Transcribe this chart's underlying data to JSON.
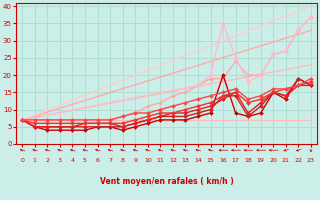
{
  "xlabel": "Vent moyen/en rafales ( km/h )",
  "xlim": [
    -0.5,
    23.5
  ],
  "ylim": [
    0,
    41
  ],
  "yticks": [
    0,
    5,
    10,
    15,
    20,
    25,
    30,
    35,
    40
  ],
  "xticks": [
    0,
    1,
    2,
    3,
    4,
    5,
    6,
    7,
    8,
    9,
    10,
    11,
    12,
    13,
    14,
    15,
    16,
    17,
    18,
    19,
    20,
    21,
    22,
    23
  ],
  "background_color": "#cceee8",
  "grid_color": "#aaddcc",
  "series": [
    {
      "x": [
        0,
        23
      ],
      "y": [
        7,
        7
      ],
      "color": "#ffbbbb",
      "linewidth": 1.0,
      "marker": null,
      "zorder": 1
    },
    {
      "x": [
        0,
        23
      ],
      "y": [
        7,
        23
      ],
      "color": "#ffbbbb",
      "linewidth": 1.0,
      "marker": null,
      "zorder": 1
    },
    {
      "x": [
        0,
        23
      ],
      "y": [
        7,
        33
      ],
      "color": "#ffaaaa",
      "linewidth": 1.0,
      "marker": null,
      "zorder": 1
    },
    {
      "x": [
        0,
        23
      ],
      "y": [
        7,
        40
      ],
      "color": "#ffcccc",
      "linewidth": 1.0,
      "marker": null,
      "zorder": 1
    },
    {
      "x": [
        0,
        1,
        2,
        3,
        4,
        5,
        6,
        7,
        8,
        9,
        10,
        11,
        12,
        13,
        14,
        15,
        16,
        17,
        18,
        19,
        20,
        21,
        22,
        23
      ],
      "y": [
        7,
        7,
        7,
        7,
        7,
        7,
        7,
        7,
        8,
        9,
        11,
        12,
        14,
        15,
        17,
        19,
        19,
        24,
        20,
        20,
        26,
        27,
        33,
        37
      ],
      "color": "#ffaaaa",
      "linewidth": 1.0,
      "marker": "D",
      "markersize": 2.0,
      "zorder": 2
    },
    {
      "x": [
        0,
        1,
        2,
        3,
        4,
        5,
        6,
        7,
        8,
        9,
        10,
        11,
        12,
        13,
        14,
        15,
        16,
        17,
        18,
        19,
        20,
        21,
        22,
        23
      ],
      "y": [
        7,
        5,
        4,
        4,
        4,
        4,
        5,
        5,
        4,
        5,
        6,
        7,
        7,
        7,
        8,
        9,
        20,
        9,
        8,
        9,
        15,
        13,
        19,
        17
      ],
      "color": "#cc0000",
      "linewidth": 1.0,
      "marker": "D",
      "markersize": 2.0,
      "zorder": 4
    },
    {
      "x": [
        0,
        1,
        2,
        3,
        4,
        5,
        6,
        7,
        8,
        9,
        10,
        11,
        12,
        13,
        14,
        15,
        16,
        17,
        18,
        19,
        20,
        21,
        22,
        23
      ],
      "y": [
        7,
        5,
        5,
        5,
        5,
        5,
        5,
        5,
        5,
        6,
        7,
        8,
        8,
        8,
        9,
        10,
        14,
        14,
        8,
        11,
        15,
        14,
        19,
        17
      ],
      "color": "#cc2222",
      "linewidth": 1.0,
      "marker": "D",
      "markersize": 2.0,
      "zorder": 4
    },
    {
      "x": [
        0,
        1,
        2,
        3,
        4,
        5,
        6,
        7,
        8,
        9,
        10,
        11,
        12,
        13,
        14,
        15,
        16,
        17,
        18,
        19,
        20,
        21,
        22,
        23
      ],
      "y": [
        7,
        5,
        5,
        5,
        5,
        6,
        6,
        6,
        5,
        6,
        7,
        8,
        9,
        9,
        10,
        11,
        13,
        15,
        9,
        12,
        15,
        14,
        17,
        17
      ],
      "color": "#dd2222",
      "linewidth": 1.0,
      "marker": "D",
      "markersize": 2.0,
      "zorder": 4
    },
    {
      "x": [
        0,
        1,
        2,
        3,
        4,
        5,
        6,
        7,
        8,
        9,
        10,
        11,
        12,
        13,
        14,
        15,
        16,
        17,
        18,
        19,
        20,
        21,
        22,
        23
      ],
      "y": [
        7,
        6,
        6,
        6,
        6,
        6,
        6,
        6,
        6,
        7,
        8,
        9,
        9,
        10,
        11,
        12,
        14,
        15,
        12,
        13,
        15,
        16,
        17,
        18
      ],
      "color": "#ee3333",
      "linewidth": 1.0,
      "marker": "D",
      "markersize": 2.0,
      "zorder": 4
    },
    {
      "x": [
        0,
        1,
        2,
        3,
        4,
        5,
        6,
        7,
        8,
        9,
        10,
        11,
        12,
        13,
        14,
        15,
        16,
        17,
        18,
        19,
        20,
        21,
        22,
        23
      ],
      "y": [
        7,
        7,
        7,
        7,
        7,
        7,
        7,
        7,
        8,
        9,
        9,
        10,
        11,
        12,
        13,
        14,
        15,
        16,
        13,
        14,
        16,
        16,
        17,
        19
      ],
      "color": "#ff4444",
      "linewidth": 1.0,
      "marker": "D",
      "markersize": 2.0,
      "zorder": 4
    },
    {
      "x": [
        0,
        14,
        15,
        16,
        17,
        18,
        19,
        20,
        21,
        22,
        23
      ],
      "y": [
        7,
        17,
        20,
        35,
        25,
        18,
        20,
        26,
        27,
        33,
        37
      ],
      "color": "#ffbbcc",
      "linewidth": 1.0,
      "marker": "D",
      "markersize": 2.0,
      "zorder": 3
    }
  ],
  "wind_directions": [
    225,
    225,
    225,
    225,
    225,
    225,
    225,
    225,
    225,
    225,
    225,
    225,
    225,
    225,
    225,
    225,
    270,
    270,
    270,
    270,
    270,
    315,
    315,
    360
  ]
}
